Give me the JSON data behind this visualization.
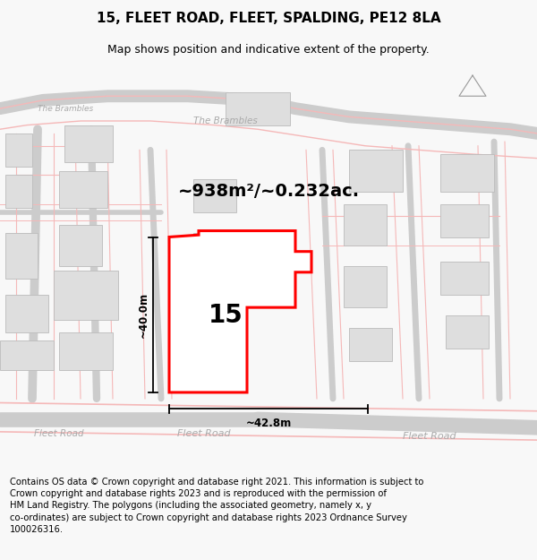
{
  "title": "15, FLEET ROAD, FLEET, SPALDING, PE12 8LA",
  "subtitle": "Map shows position and indicative extent of the property.",
  "footer": "Contains OS data © Crown copyright and database right 2021. This information is subject to Crown copyright and database rights 2023 and is reproduced with the permission of HM Land Registry. The polygons (including the associated geometry, namely x, y co-ordinates) are subject to Crown copyright and database rights 2023 Ordnance Survey 100026316.",
  "area_label": "~938m²/~0.232ac.",
  "number_label": "15",
  "width_label": "~42.8m",
  "height_label": "~40.0m",
  "bg_color": "#f8f8f8",
  "map_bg": "#ffffff",
  "road_color": "#f5b8b8",
  "road_outline": "#e08080",
  "building_color": "#dedede",
  "building_edge": "#bbbbbb",
  "highlight_color": "#ff0000",
  "highlight_fill": "#ffffff",
  "grey_road_color": "#cccccc",
  "text_road_color": "#aaaaaa",
  "title_fontsize": 11,
  "subtitle_fontsize": 9,
  "footer_fontsize": 7.2,
  "area_fontsize": 14,
  "number_fontsize": 20
}
